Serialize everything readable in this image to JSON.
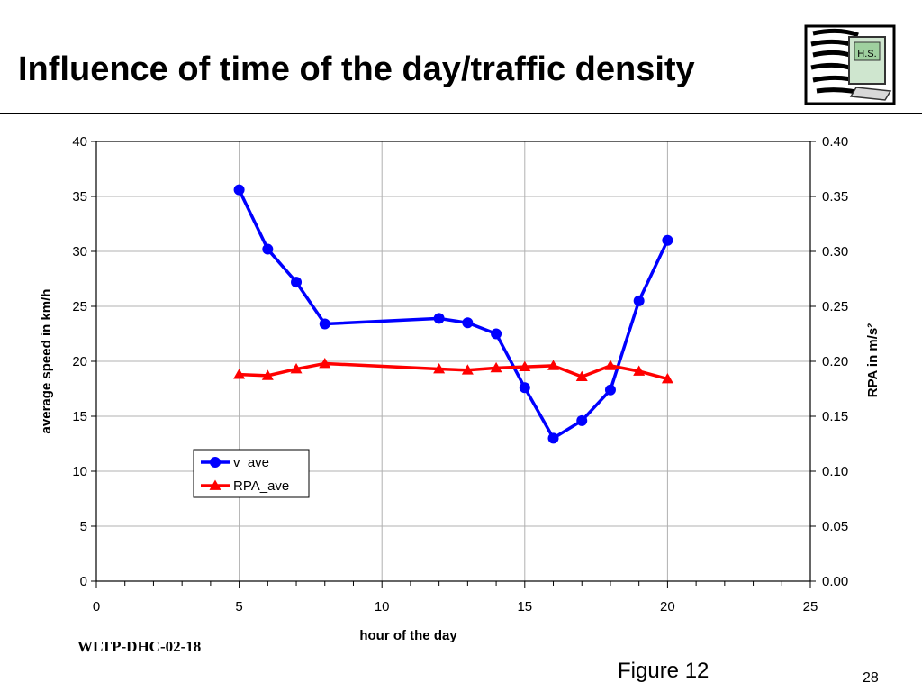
{
  "slide": {
    "title": "Influence of time of the day/traffic density",
    "footer_left": "WLTP-DHC-02-18",
    "figure_label": "Figure 12",
    "page_number": "28",
    "logo_text": "H.S."
  },
  "chart_data": {
    "type": "line",
    "xlabel": "hour of the day",
    "ylabel": "average speed in km/h",
    "y2label": "RPA in m/s²",
    "xlim": [
      0,
      25
    ],
    "ylim": [
      0,
      40
    ],
    "y2lim": [
      0,
      0.4
    ],
    "xticks": [
      "0",
      "5",
      "10",
      "15",
      "20",
      "25"
    ],
    "yticks": [
      "0",
      "5",
      "10",
      "15",
      "20",
      "25",
      "30",
      "35",
      "40"
    ],
    "y2ticks": [
      "0.00",
      "0.05",
      "0.10",
      "0.15",
      "0.20",
      "0.25",
      "0.30",
      "0.35",
      "0.40"
    ],
    "grid": true,
    "legend_position": "lower-left",
    "series": [
      {
        "name": "v_ave",
        "axis": "left",
        "color": "#0000ff",
        "marker": "circle",
        "x": [
          5,
          6,
          7,
          8,
          12,
          13,
          14,
          15,
          16,
          17,
          18,
          19,
          20
        ],
        "y": [
          35.6,
          30.2,
          27.2,
          23.4,
          23.9,
          23.5,
          22.5,
          17.6,
          13.0,
          14.6,
          17.4,
          25.5,
          31.0
        ]
      },
      {
        "name": "RPA_ave",
        "axis": "right",
        "color": "#ff0000",
        "marker": "triangle",
        "x": [
          5,
          6,
          7,
          8,
          12,
          13,
          14,
          15,
          16,
          17,
          18,
          19,
          20
        ],
        "y": [
          0.188,
          0.187,
          0.193,
          0.198,
          0.193,
          0.192,
          0.194,
          0.195,
          0.196,
          0.186,
          0.196,
          0.191,
          0.184
        ]
      }
    ]
  }
}
